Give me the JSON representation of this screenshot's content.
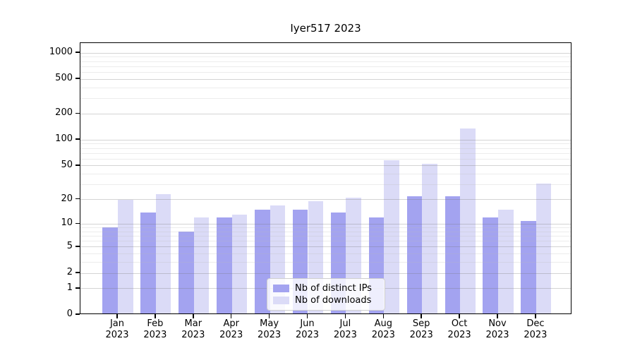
{
  "title": "Iyer517 2023",
  "legend": {
    "items": [
      {
        "label": "Nb of distinct IPs",
        "color": "#a3a3f0"
      },
      {
        "label": "Nb of downloads",
        "color": "#dbdbf7"
      }
    ]
  },
  "colors": {
    "distinct_ips_bar": "#a3a3f0",
    "downloads_bar": "#dbdbf7",
    "axis": "#000000",
    "major_gridline": "#d0d0d0",
    "minor_gridline": "#ededed"
  },
  "chart_data": {
    "type": "bar",
    "title": "Iyer517 2023",
    "categories": [
      "Jan 2023",
      "Feb 2023",
      "Mar 2023",
      "Apr 2023",
      "May 2023",
      "Jun 2023",
      "Jul 2023",
      "Aug 2023",
      "Sep 2023",
      "Oct 2023",
      "Nov 2023",
      "Dec 2023"
    ],
    "series": [
      {
        "name": "Nb of distinct IPs",
        "color": "#a3a3f0",
        "values": [
          9,
          14,
          8,
          12,
          15,
          15,
          14,
          12,
          22,
          22,
          12,
          11
        ]
      },
      {
        "name": "Nb of downloads",
        "color": "#dbdbf7",
        "values": [
          20,
          23,
          12,
          13,
          17,
          19,
          21,
          58,
          53,
          135,
          15,
          31
        ]
      }
    ],
    "xlabel": "",
    "ylabel": "",
    "yscale": "log1p",
    "ylim": [
      0,
      1300
    ],
    "yticks_major": [
      0,
      1,
      2,
      5,
      10,
      20,
      50,
      100,
      200,
      500,
      1000
    ],
    "yticks_minor": [
      3,
      4,
      6,
      7,
      8,
      9,
      30,
      40,
      60,
      70,
      80,
      90,
      300,
      400,
      600,
      700,
      800,
      900
    ],
    "grid": true,
    "legend_position": "lower center"
  }
}
